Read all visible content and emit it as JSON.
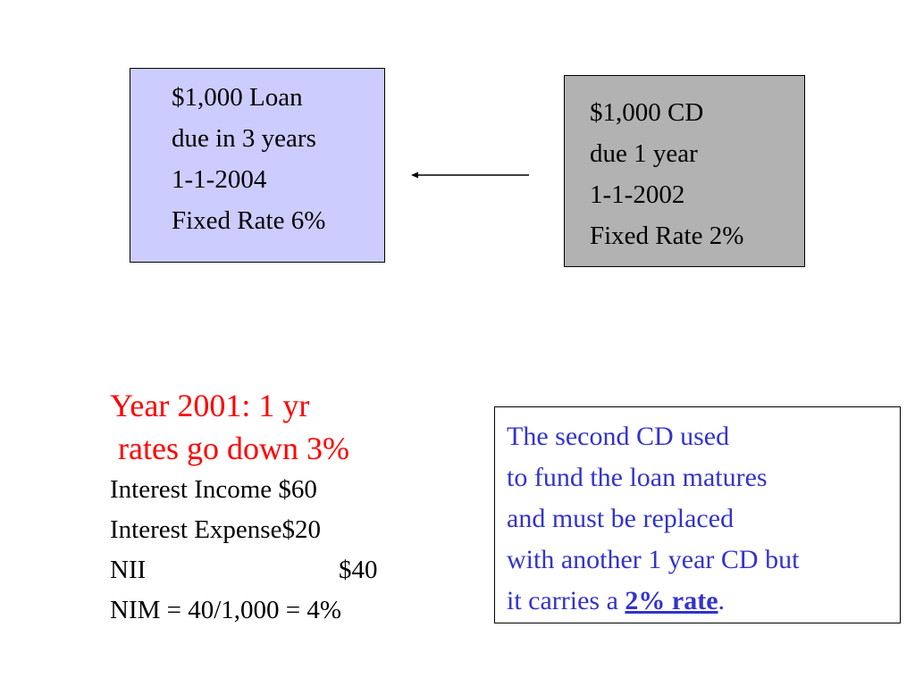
{
  "loan_box": {
    "lines": [
      "$1,000 Loan",
      "due in 3 years",
      "1-1-2004",
      "Fixed Rate 6%"
    ],
    "background": "#ccccff"
  },
  "cd_box": {
    "lines": [
      "$1,000 CD",
      "due 1 year",
      "1-1-2002",
      "Fixed Rate 2%"
    ],
    "background": "#b2b2b2"
  },
  "summary": {
    "heading_line1": "Year 2001: 1 yr",
    "heading_line2": " rates go down 3%",
    "heading_color": "#ff0000",
    "income": "Interest Income $60",
    "expense": "Interest Expense$20",
    "nii_label": "NII",
    "nii_value": "$40",
    "nim": "NIM = 40/1,000 = 4%"
  },
  "note": {
    "lines": [
      "The second CD used",
      "to fund the loan matures",
      "and must be replaced",
      "with another 1 year CD but"
    ],
    "last_line_prefix": "it carries a ",
    "last_line_emphasis": "2% rate",
    "last_line_suffix": ".",
    "text_color": "#3333cc"
  }
}
